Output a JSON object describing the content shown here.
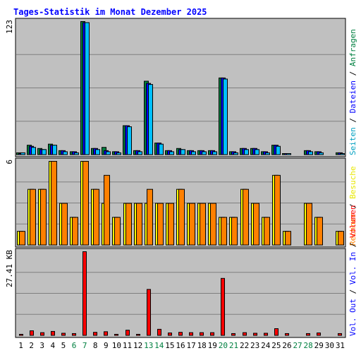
{
  "chart_data": {
    "type": "bar",
    "title": "Tages-Statistik im Monat Dezember 2025",
    "categories": [
      "1",
      "2",
      "3",
      "4",
      "5",
      "6",
      "7",
      "8",
      "9",
      "10",
      "11",
      "12",
      "13",
      "14",
      "15",
      "16",
      "17",
      "18",
      "19",
      "20",
      "21",
      "22",
      "23",
      "24",
      "25",
      "26",
      "27",
      "28",
      "29",
      "30",
      "31"
    ],
    "weekend_days": [
      "6",
      "7",
      "13",
      "14",
      "20",
      "21",
      "27",
      "28"
    ],
    "colors": {
      "title": "#0000ff",
      "frame_bg": "#c0c0c0",
      "weekend_label": "#008040",
      "weekday_label": "#000000",
      "label_anfragen": "#008040",
      "label_dateien": "#0000ff",
      "label_seiten": "#00a0c0",
      "label_besuche": "#e8e800",
      "label_rechner": "#ff8000",
      "label_vol_out": "#0000ff",
      "label_vol_in": "#0000ff",
      "label_volumen": "#ff0000",
      "slash": "#000000",
      "hits": "#008040",
      "files": "#0000ff",
      "pages": "#00c0ff",
      "visits": "#ffff00",
      "sites": "#ff8000",
      "volume": "#ff0000"
    },
    "panels": [
      {
        "id": "requests",
        "ymax": 123,
        "ymax_label": "123",
        "y_unit": "",
        "right_label": [
          {
            "text": "Anfragen",
            "color_key": "label_anfragen"
          },
          {
            "text": "Dateien",
            "color_key": "label_dateien"
          },
          {
            "text": "Seiten",
            "color_key": "label_seiten"
          }
        ],
        "series": [
          {
            "name": "Anfragen",
            "color_key": "hits",
            "values": [
              2,
              9,
              6,
              10,
              4,
              3,
              123,
              6,
              7,
              3,
              27,
              4,
              68,
              11,
              4,
              6,
              4,
              4,
              4,
              71,
              3,
              6,
              6,
              3,
              9,
              1,
              0,
              4,
              3,
              0,
              2
            ]
          },
          {
            "name": "Dateien",
            "color_key": "files",
            "values": [
              1,
              8,
              5,
              9,
              4,
              3,
              122,
              6,
              4,
              3,
              27,
              4,
              66,
              11,
              4,
              5,
              4,
              4,
              4,
              71,
              3,
              6,
              6,
              3,
              9,
              1,
              0,
              4,
              3,
              0,
              2
            ]
          },
          {
            "name": "Seiten",
            "color_key": "pages",
            "values": [
              2,
              7,
              5,
              9,
              3,
              2,
              122,
              5,
              3,
              2,
              26,
              3,
              65,
              10,
              3,
              5,
              3,
              3,
              3,
              70,
              2,
              5,
              5,
              2,
              8,
              1,
              0,
              3,
              2,
              0,
              1
            ]
          }
        ]
      },
      {
        "id": "visits",
        "ymax": 6,
        "ymax_label": "6",
        "y_unit": "",
        "right_label": [
          {
            "text": "Besuche",
            "color_key": "label_besuche"
          },
          {
            "text": "Rechner",
            "color_key": "label_rechner"
          }
        ],
        "series": [
          {
            "name": "Besuche",
            "color_key": "visits",
            "values": [
              1,
              4,
              4,
              6,
              3,
              2,
              6,
              4,
              3,
              2,
              3,
              3,
              3,
              3,
              3,
              4,
              3,
              3,
              3,
              2,
              2,
              4,
              3,
              2,
              5,
              1,
              0,
              3,
              2,
              0,
              1
            ]
          },
          {
            "name": "Rechner",
            "color_key": "sites",
            "values": [
              1,
              4,
              4,
              6,
              3,
              2,
              6,
              4,
              5,
              2,
              3,
              3,
              4,
              3,
              3,
              4,
              3,
              3,
              3,
              2,
              2,
              4,
              3,
              2,
              5,
              1,
              0,
              3,
              2,
              0,
              1
            ]
          }
        ]
      },
      {
        "id": "volume",
        "ymax": 27.41,
        "ymax_label": "27.41",
        "y_unit": "KB",
        "right_label": [
          {
            "text": "Volumen",
            "color_key": "label_volumen"
          },
          {
            "text": "Vol. In",
            "color_key": "label_vol_in"
          },
          {
            "text": "Vol. Out",
            "color_key": "label_vol_out"
          }
        ],
        "series": [
          {
            "name": "Volumen",
            "color_key": "volume",
            "values": [
              0.4,
              1.6,
              1.0,
              1.4,
              0.8,
              0.7,
              27.41,
              1.1,
              1.3,
              0.4,
              1.8,
              0.4,
              15.1,
              2.1,
              0.9,
              1.1,
              1.0,
              1.0,
              1.0,
              18.7,
              0.7,
              1.0,
              0.8,
              0.8,
              2.3,
              0.7,
              0,
              0.7,
              0.9,
              0,
              0.7
            ]
          }
        ]
      }
    ]
  }
}
